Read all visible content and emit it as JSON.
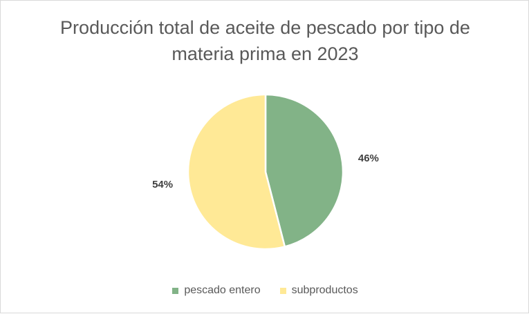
{
  "chart_data": {
    "type": "pie",
    "title_lines": [
      "Producción total de aceite de pescado por tipo de",
      "materia prima en 2023"
    ],
    "categories": [
      "pescado entero",
      "subproductos"
    ],
    "values": [
      46,
      54
    ],
    "labels": [
      "46%",
      "54%"
    ],
    "colors": [
      "#82b387",
      "#ffe996"
    ],
    "legend_position": "bottom"
  }
}
